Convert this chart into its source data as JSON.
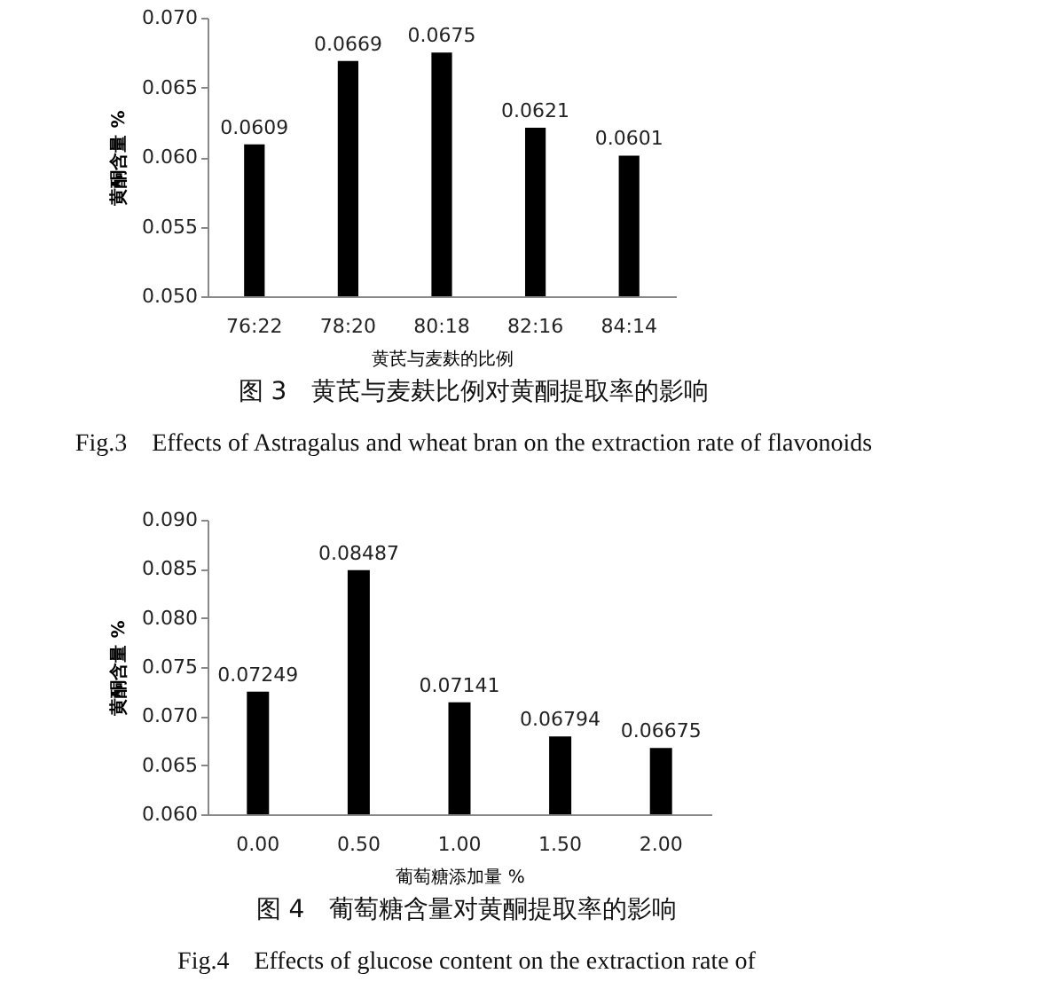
{
  "chart_data": [
    {
      "type": "bar",
      "categories": [
        "76:22",
        "78:20",
        "80:18",
        "82:16",
        "84:14"
      ],
      "values": [
        0.0609,
        0.0669,
        0.0675,
        0.0621,
        0.0601
      ],
      "color": "#000000",
      "data_labels": true,
      "xlabel": "黄芪与麦麸的比例",
      "ylabel": "黄酮含量 %",
      "ylim": [
        0.05,
        0.07
      ],
      "yticks": [
        {
          "value": 0.05,
          "label": "0.050"
        },
        {
          "value": 0.055,
          "label": "0.055"
        },
        {
          "value": 0.06,
          "label": "0.060"
        },
        {
          "value": 0.065,
          "label": "0.065"
        },
        {
          "value": 0.07,
          "label": "0.070"
        }
      ],
      "annotations": [
        "图 3　黄芪与麦麸比例对黄酮提取率的影响",
        "Fig.3　Effects of Astragalus and wheat bran on the extraction rate of flavonoids"
      ]
    },
    {
      "type": "bar",
      "categories": [
        "0.00",
        "0.50",
        "1.00",
        "1.50",
        "2.00"
      ],
      "values": [
        0.07249,
        0.08487,
        0.07141,
        0.06794,
        0.06675
      ],
      "color": "#000000",
      "data_labels": true,
      "xlabel": "葡萄糖添加量 %",
      "ylabel": "黄酮含量 %",
      "ylim": [
        0.06,
        0.09
      ],
      "yticks": [
        {
          "value": 0.06,
          "label": "0.060"
        },
        {
          "value": 0.065,
          "label": "0.065"
        },
        {
          "value": 0.07,
          "label": "0.070"
        },
        {
          "value": 0.075,
          "label": "0.075"
        },
        {
          "value": 0.08,
          "label": "0.080"
        },
        {
          "value": 0.085,
          "label": "0.085"
        },
        {
          "value": 0.09,
          "label": "0.090"
        }
      ],
      "annotations": [
        "图 4　葡萄糖含量对黄酮提取率的影响",
        "Fig.4　Effects of glucose content on the extraction rate of"
      ]
    }
  ]
}
